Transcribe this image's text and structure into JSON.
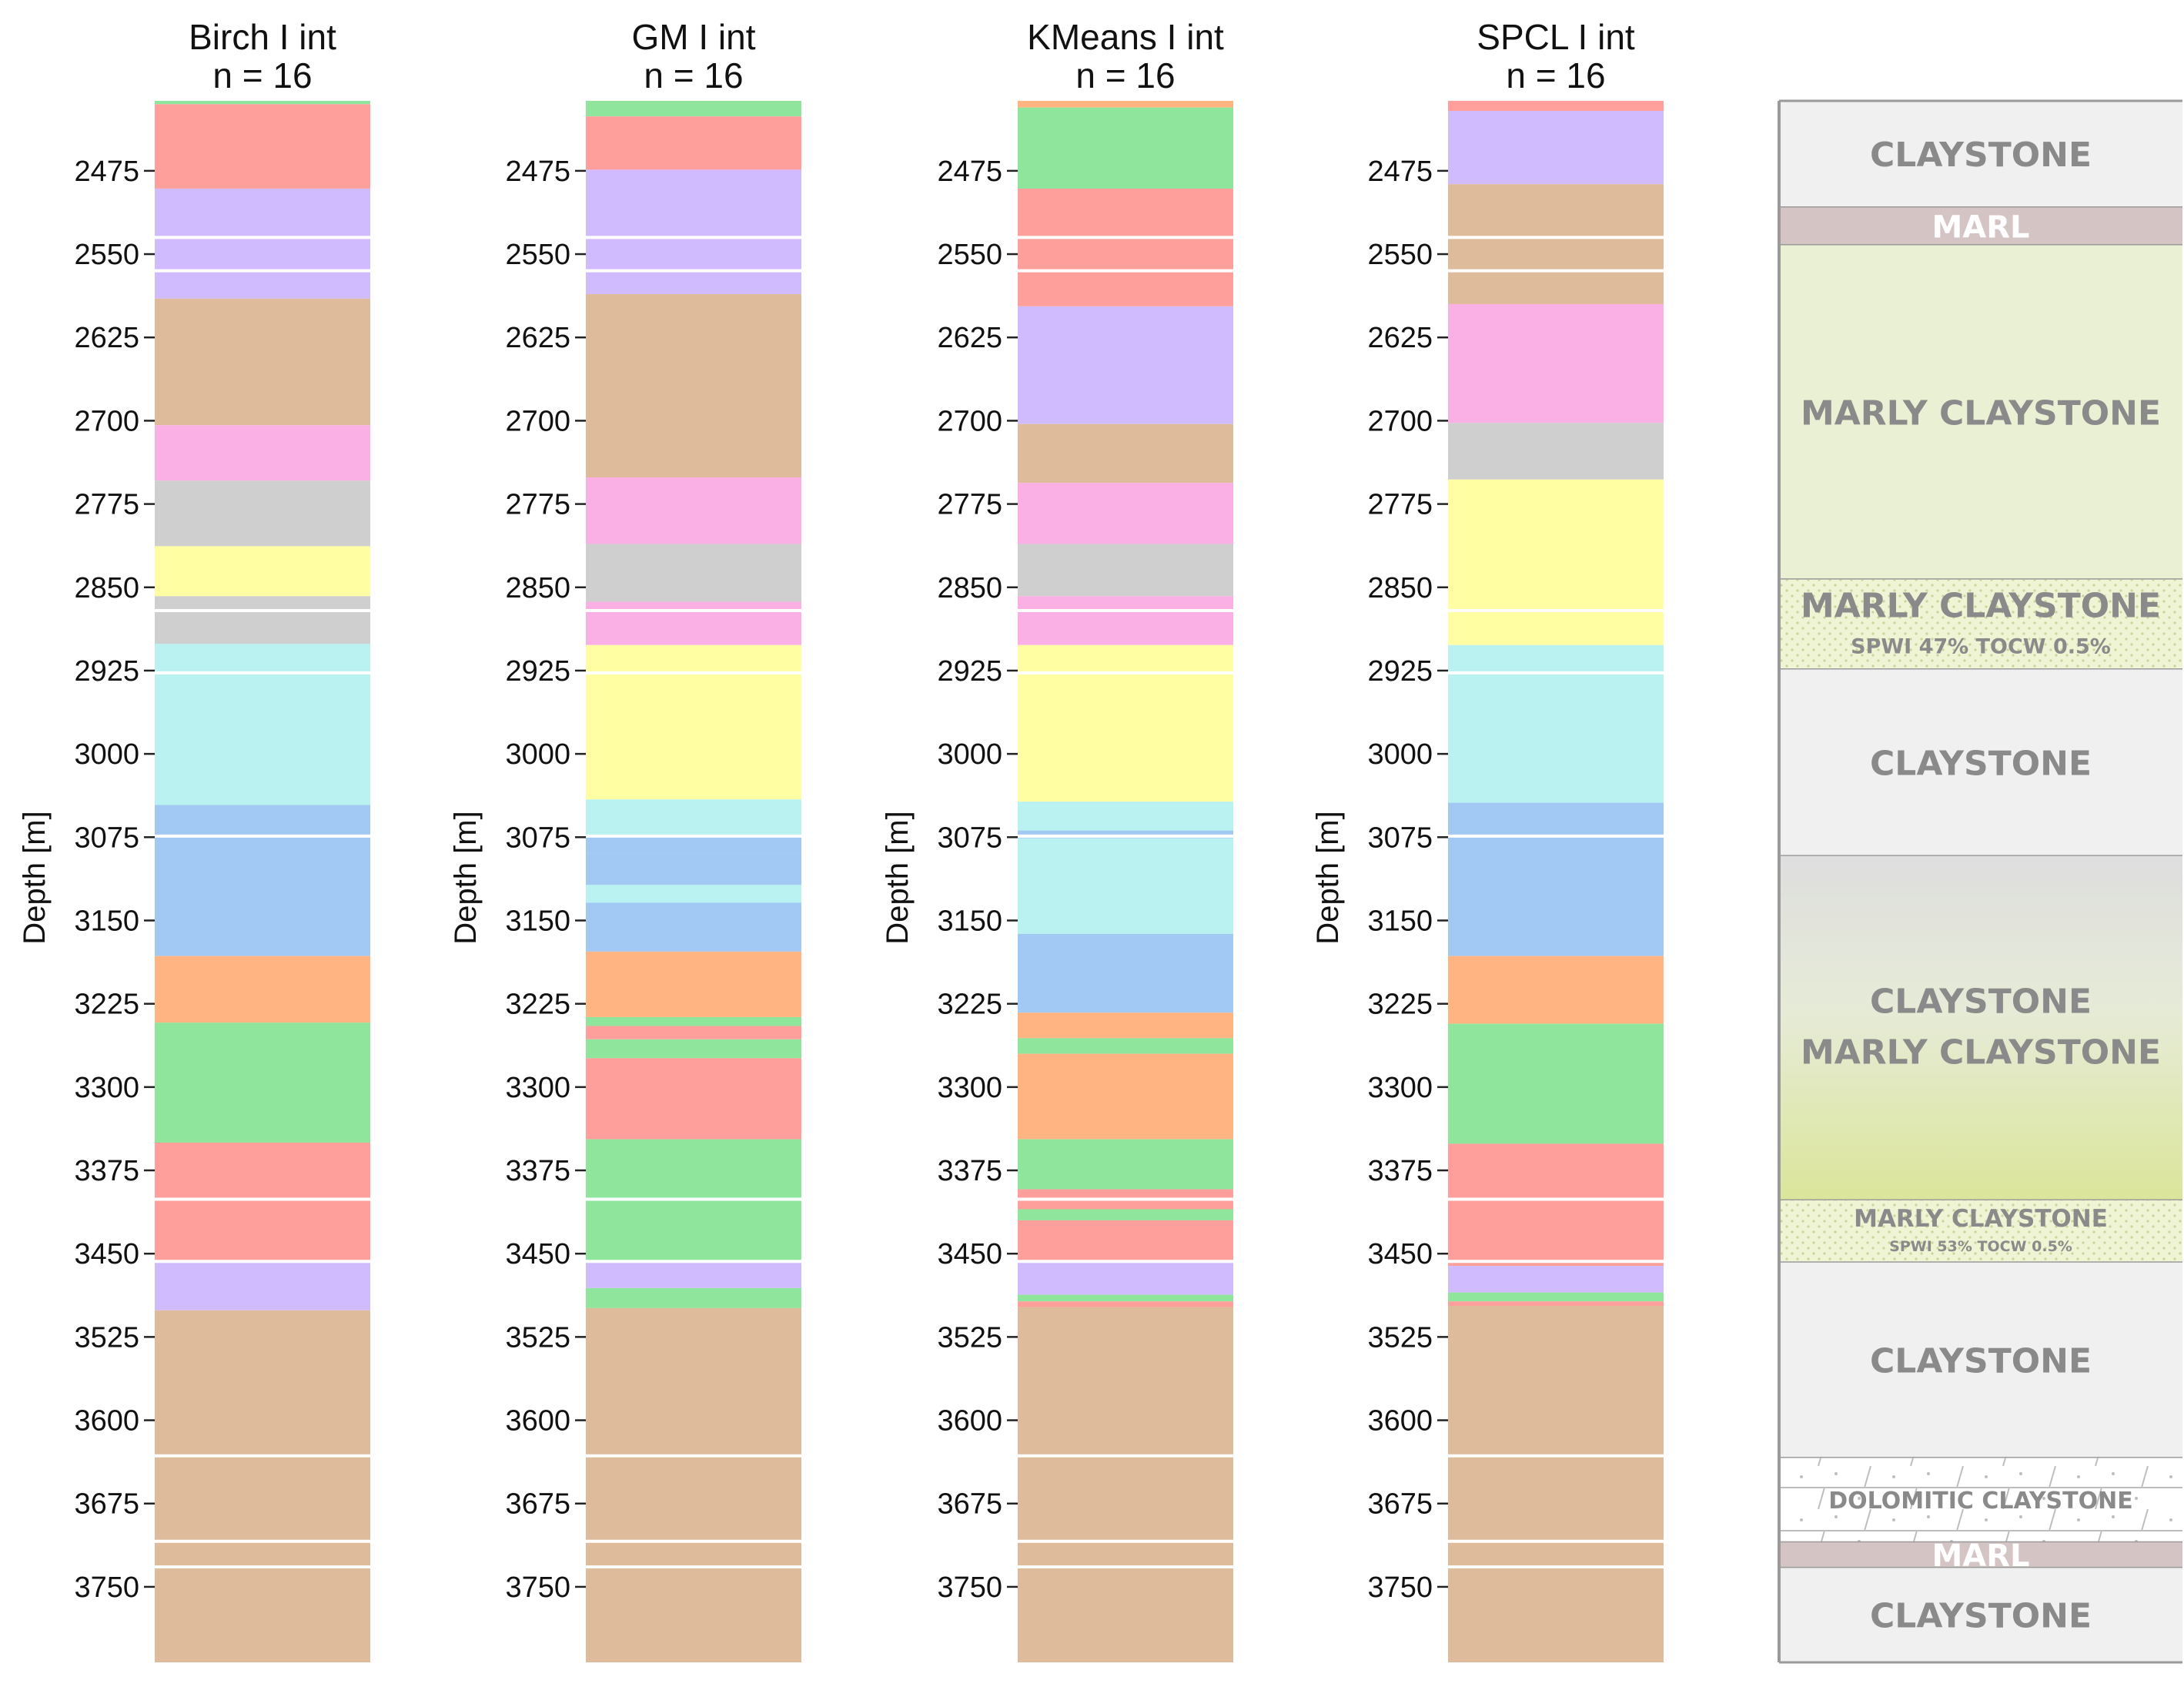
{
  "chart_data": [
    {
      "type": "bar",
      "title": "Birch I int",
      "subtitle": "n = 16",
      "ylabel": "Depth [m]",
      "ylim": [
        2412,
        3818
      ],
      "yticks": [
        2475,
        2550,
        2625,
        2700,
        2775,
        2850,
        2925,
        3000,
        3075,
        3150,
        3225,
        3300,
        3375,
        3450,
        3525,
        3600,
        3675,
        3750
      ],
      "intervals": [
        {
          "top": 2412,
          "base": 2415,
          "color": "#8ee59b"
        },
        {
          "top": 2415,
          "base": 2491,
          "color": "#ff9f9b"
        },
        {
          "top": 2491,
          "base": 2590,
          "color": "#d0bbff"
        },
        {
          "top": 2590,
          "base": 2704,
          "color": "#debb9b"
        },
        {
          "top": 2704,
          "base": 2754,
          "color": "#fab0e4"
        },
        {
          "top": 2754,
          "base": 2813,
          "color": "#cfcfcf"
        },
        {
          "top": 2813,
          "base": 2858,
          "color": "#fffea3"
        },
        {
          "top": 2858,
          "base": 2901,
          "color": "#cfcfcf"
        },
        {
          "top": 2901,
          "base": 3046,
          "color": "#b9f2f0"
        },
        {
          "top": 3046,
          "base": 3182,
          "color": "#a1c9f4"
        },
        {
          "top": 3182,
          "base": 3242,
          "color": "#ffb482"
        },
        {
          "top": 3242,
          "base": 3350,
          "color": "#8ee59b"
        },
        {
          "top": 3350,
          "base": 3458,
          "color": "#ff9f9b"
        },
        {
          "top": 3458,
          "base": 3501,
          "color": "#d0bbff"
        },
        {
          "top": 3501,
          "base": 3818,
          "color": "#debb9b"
        }
      ]
    },
    {
      "type": "bar",
      "title": "GM I int",
      "subtitle": "n = 16",
      "ylabel": "Depth [m]",
      "ylim": [
        2412,
        3818
      ],
      "yticks": [
        2475,
        2550,
        2625,
        2700,
        2775,
        2850,
        2925,
        3000,
        3075,
        3150,
        3225,
        3300,
        3375,
        3450,
        3525,
        3600,
        3675,
        3750
      ],
      "intervals": [
        {
          "top": 2412,
          "base": 2426,
          "color": "#8ee59b"
        },
        {
          "top": 2426,
          "base": 2474,
          "color": "#ff9f9b"
        },
        {
          "top": 2474,
          "base": 2586,
          "color": "#d0bbff"
        },
        {
          "top": 2586,
          "base": 2751,
          "color": "#debb9b"
        },
        {
          "top": 2751,
          "base": 2811,
          "color": "#fab0e4"
        },
        {
          "top": 2811,
          "base": 2863,
          "color": "#cfcfcf"
        },
        {
          "top": 2863,
          "base": 2902,
          "color": "#fab0e4"
        },
        {
          "top": 2902,
          "base": 3041,
          "color": "#fffea3"
        },
        {
          "top": 3041,
          "base": 3074,
          "color": "#b9f2f0"
        },
        {
          "top": 3074,
          "base": 3090,
          "color": "#a1c9f4"
        },
        {
          "top": 3090,
          "base": 3118,
          "color": "#a1c9f4"
        },
        {
          "top": 3118,
          "base": 3134,
          "color": "#b9f2f0"
        },
        {
          "top": 3134,
          "base": 3178,
          "color": "#a1c9f4"
        },
        {
          "top": 3178,
          "base": 3237,
          "color": "#ffb482"
        },
        {
          "top": 3237,
          "base": 3245,
          "color": "#8ee59b"
        },
        {
          "top": 3245,
          "base": 3257,
          "color": "#ff9f9b"
        },
        {
          "top": 3257,
          "base": 3274,
          "color": "#8ee59b"
        },
        {
          "top": 3274,
          "base": 3347,
          "color": "#ff9f9b"
        },
        {
          "top": 3347,
          "base": 3456,
          "color": "#8ee59b"
        },
        {
          "top": 3456,
          "base": 3481,
          "color": "#d0bbff"
        },
        {
          "top": 3481,
          "base": 3499,
          "color": "#8ee59b"
        },
        {
          "top": 3499,
          "base": 3818,
          "color": "#debb9b"
        }
      ]
    },
    {
      "type": "bar",
      "title": "KMeans I int",
      "subtitle": "n = 16",
      "ylabel": "Depth [m]",
      "ylim": [
        2412,
        3818
      ],
      "yticks": [
        2475,
        2550,
        2625,
        2700,
        2775,
        2850,
        2925,
        3000,
        3075,
        3150,
        3225,
        3300,
        3375,
        3450,
        3525,
        3600,
        3675,
        3750
      ],
      "intervals": [
        {
          "top": 2412,
          "base": 2418,
          "color": "#ffb482"
        },
        {
          "top": 2418,
          "base": 2491,
          "color": "#8ee59b"
        },
        {
          "top": 2491,
          "base": 2597,
          "color": "#ff9f9b"
        },
        {
          "top": 2597,
          "base": 2703,
          "color": "#d0bbff"
        },
        {
          "top": 2703,
          "base": 2756,
          "color": "#debb9b"
        },
        {
          "top": 2756,
          "base": 2811,
          "color": "#fab0e4"
        },
        {
          "top": 2811,
          "base": 2858,
          "color": "#cfcfcf"
        },
        {
          "top": 2858,
          "base": 2902,
          "color": "#fab0e4"
        },
        {
          "top": 2902,
          "base": 3043,
          "color": "#fffea3"
        },
        {
          "top": 3043,
          "base": 3069,
          "color": "#b9f2f0"
        },
        {
          "top": 3069,
          "base": 3076,
          "color": "#a1c9f4"
        },
        {
          "top": 3076,
          "base": 3162,
          "color": "#b9f2f0"
        },
        {
          "top": 3162,
          "base": 3233,
          "color": "#a1c9f4"
        },
        {
          "top": 3233,
          "base": 3256,
          "color": "#ffb482"
        },
        {
          "top": 3256,
          "base": 3270,
          "color": "#8ee59b"
        },
        {
          "top": 3270,
          "base": 3347,
          "color": "#ffb482"
        },
        {
          "top": 3347,
          "base": 3392,
          "color": "#8ee59b"
        },
        {
          "top": 3392,
          "base": 3410,
          "color": "#ff9f9b"
        },
        {
          "top": 3410,
          "base": 3420,
          "color": "#8ee59b"
        },
        {
          "top": 3420,
          "base": 3457,
          "color": "#ff9f9b"
        },
        {
          "top": 3457,
          "base": 3487,
          "color": "#d0bbff"
        },
        {
          "top": 3487,
          "base": 3493,
          "color": "#8ee59b"
        },
        {
          "top": 3493,
          "base": 3498,
          "color": "#ff9f9b"
        },
        {
          "top": 3498,
          "base": 3818,
          "color": "#debb9b"
        }
      ]
    },
    {
      "type": "bar",
      "title": "SPCL I int",
      "subtitle": "n = 16",
      "ylabel": "Depth [m]",
      "ylim": [
        2412,
        3818
      ],
      "yticks": [
        2475,
        2550,
        2625,
        2700,
        2775,
        2850,
        2925,
        3000,
        3075,
        3150,
        3225,
        3300,
        3375,
        3450,
        3525,
        3600,
        3675,
        3750
      ],
      "intervals": [
        {
          "top": 2412,
          "base": 2421,
          "color": "#ff9f9b"
        },
        {
          "top": 2421,
          "base": 2487,
          "color": "#d0bbff"
        },
        {
          "top": 2487,
          "base": 2595,
          "color": "#debb9b"
        },
        {
          "top": 2595,
          "base": 2702,
          "color": "#fab0e4"
        },
        {
          "top": 2702,
          "base": 2753,
          "color": "#cfcfcf"
        },
        {
          "top": 2753,
          "base": 2902,
          "color": "#fffea3"
        },
        {
          "top": 2902,
          "base": 3044,
          "color": "#b9f2f0"
        },
        {
          "top": 3044,
          "base": 3182,
          "color": "#a1c9f4"
        },
        {
          "top": 3182,
          "base": 3243,
          "color": "#ffb482"
        },
        {
          "top": 3243,
          "base": 3351,
          "color": "#8ee59b"
        },
        {
          "top": 3351,
          "base": 3461,
          "color": "#ff9f9b"
        },
        {
          "top": 3461,
          "base": 3485,
          "color": "#d0bbff"
        },
        {
          "top": 3485,
          "base": 3493,
          "color": "#8ee59b"
        },
        {
          "top": 3493,
          "base": 3497,
          "color": "#ff9f9b"
        },
        {
          "top": 3497,
          "base": 3818,
          "color": "#debb9b"
        }
      ]
    }
  ],
  "boundaries": [
    2535,
    2565,
    2871,
    2927,
    3074,
    3401,
    3457,
    3632,
    3709,
    3732
  ],
  "lithology": [
    {
      "top": 2412,
      "base": 2508,
      "label": "CLAYSTONE",
      "note": "",
      "fill": "solid",
      "color": "#f0f0f0",
      "text_color": "#8a8a8a"
    },
    {
      "top": 2508,
      "base": 2542,
      "label": "MARL",
      "note": "",
      "fill": "solid",
      "color": "#d5c4c4",
      "text_color": "#ffffff"
    },
    {
      "top": 2542,
      "base": 2843,
      "label": "MARLY CLAYSTONE",
      "note": "",
      "fill": "solid",
      "color": "#e9f0d3",
      "text_color": "#8a8a8a"
    },
    {
      "top": 2843,
      "base": 2924,
      "label": "MARLY CLAYSTONE",
      "note": "SPWI 47% TOCW 0.5%",
      "fill": "dotted",
      "color": "#eef4d4",
      "text_color": "#8a8a8a"
    },
    {
      "top": 2924,
      "base": 3092,
      "label": "CLAYSTONE",
      "note": "",
      "fill": "solid",
      "color": "#f0f0f0",
      "text_color": "#8a8a8a"
    },
    {
      "top": 3092,
      "base": 3402,
      "label": "CLAYSTONE",
      "label2": "MARLY CLAYSTONE",
      "note": "",
      "fill": "gradient",
      "color": "#dedede",
      "color2": "#dbe59a",
      "text_color": "#8a8a8a"
    },
    {
      "top": 3402,
      "base": 3458,
      "label": "MARLY CLAYSTONE",
      "note": "SPWI 53% TOCW 0.5%",
      "fill": "dotted",
      "color": "#eef4d4",
      "text_color": "#8a8a8a"
    },
    {
      "top": 3458,
      "base": 3634,
      "label": "CLAYSTONE",
      "note": "",
      "fill": "solid",
      "color": "#f0f0f0",
      "text_color": "#8a8a8a"
    },
    {
      "top": 3634,
      "base": 3710,
      "label": "DOLOMITIC CLAYSTONE",
      "note": "",
      "fill": "dolomite",
      "color": "#ffffff",
      "text_color": "#8a8a8a"
    },
    {
      "top": 3710,
      "base": 3733,
      "label": "MARL",
      "note": "",
      "fill": "solid",
      "color": "#d5c4c4",
      "text_color": "#ffffff"
    },
    {
      "top": 3733,
      "base": 3818,
      "label": "CLAYSTONE",
      "note": "",
      "fill": "solid",
      "color": "#f0f0f0",
      "text_color": "#8a8a8a"
    }
  ]
}
